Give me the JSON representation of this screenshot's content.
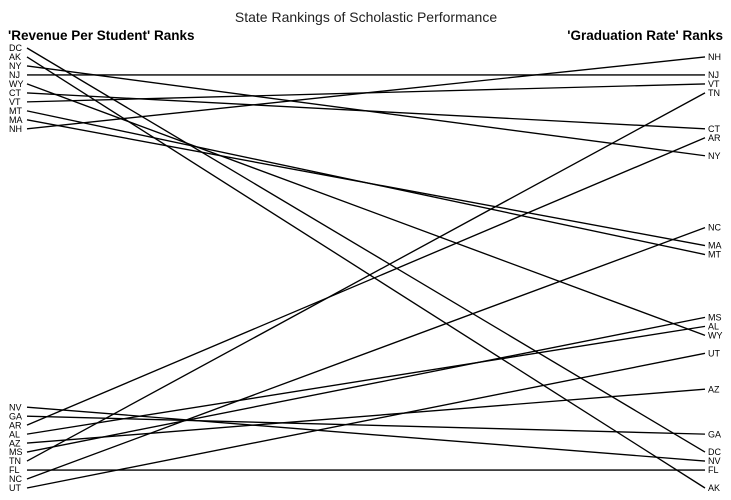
{
  "chart_data": {
    "type": "slopegraph",
    "title": "State Rankings of Scholastic Performance",
    "left_heading": "'Revenue Per Student' Ranks",
    "right_heading": "'Graduation Rate' Ranks",
    "rank_range": [
      1,
      50
    ],
    "line_color": "#000000",
    "states": [
      {
        "state": "DC",
        "revenue_rank": 1,
        "graduation_rank": 46
      },
      {
        "state": "AK",
        "revenue_rank": 2,
        "graduation_rank": 50
      },
      {
        "state": "NY",
        "revenue_rank": 3,
        "graduation_rank": 13
      },
      {
        "state": "NJ",
        "revenue_rank": 4,
        "graduation_rank": 4
      },
      {
        "state": "WY",
        "revenue_rank": 5,
        "graduation_rank": 33
      },
      {
        "state": "CT",
        "revenue_rank": 6,
        "graduation_rank": 10
      },
      {
        "state": "VT",
        "revenue_rank": 7,
        "graduation_rank": 5
      },
      {
        "state": "MT",
        "revenue_rank": 8,
        "graduation_rank": 24
      },
      {
        "state": "MA",
        "revenue_rank": 9,
        "graduation_rank": 23
      },
      {
        "state": "NH",
        "revenue_rank": 10,
        "graduation_rank": 2
      },
      {
        "state": "NV",
        "revenue_rank": 41,
        "graduation_rank": 47
      },
      {
        "state": "GA",
        "revenue_rank": 42,
        "graduation_rank": 44
      },
      {
        "state": "AR",
        "revenue_rank": 43,
        "graduation_rank": 11
      },
      {
        "state": "AL",
        "revenue_rank": 44,
        "graduation_rank": 32
      },
      {
        "state": "AZ",
        "revenue_rank": 45,
        "graduation_rank": 39
      },
      {
        "state": "MS",
        "revenue_rank": 46,
        "graduation_rank": 31
      },
      {
        "state": "TN",
        "revenue_rank": 47,
        "graduation_rank": 6
      },
      {
        "state": "FL",
        "revenue_rank": 48,
        "graduation_rank": 48
      },
      {
        "state": "NC",
        "revenue_rank": 49,
        "graduation_rank": 21
      },
      {
        "state": "UT",
        "revenue_rank": 50,
        "graduation_rank": 35
      }
    ]
  }
}
